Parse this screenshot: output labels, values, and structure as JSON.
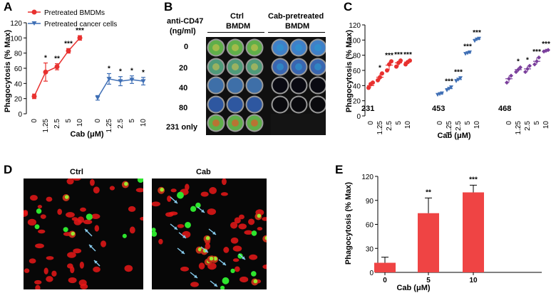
{
  "panel_letters": {
    "a": "A",
    "b": "B",
    "c": "C",
    "d": "D",
    "e": "E"
  },
  "colors": {
    "red": "#e8312f",
    "blue": "#3f6fb5",
    "purple": "#7b3f9c",
    "bar": "#ef4444",
    "green_cell": "#2ee52e",
    "red_cell": "#e81818",
    "arrow": "#88ccee"
  },
  "chart_data": [
    {
      "id": "A",
      "type": "line",
      "xlabel": "Cab (μM)",
      "ylabel": "Phagocytosis (% Max)",
      "ylim": [
        0,
        120
      ],
      "yticks": [
        "0",
        "20",
        "40",
        "60",
        "80",
        "100",
        "120"
      ],
      "xticks": [
        "0",
        "1.25",
        "2.5",
        "5",
        "10"
      ],
      "legend": [
        {
          "name": "Pretreated BMDMs",
          "color": "#e8312f",
          "marker": "circle"
        },
        {
          "name": "Pretreated cancer cells",
          "color": "#3f6fb5",
          "marker": "triangle-down"
        }
      ],
      "series": [
        {
          "name": "Pretreated BMDMs",
          "x": [
            "0",
            "1.25",
            "2.5",
            "5",
            "10"
          ],
          "values": [
            23,
            55,
            62,
            83,
            100
          ],
          "errors": [
            3,
            12,
            4,
            3,
            3
          ],
          "sig": [
            "",
            "*",
            "**",
            "***",
            "***"
          ]
        },
        {
          "name": "Pretreated cancer cells",
          "x": [
            "0",
            "1.25",
            "2.5",
            "5",
            "10"
          ],
          "values": [
            21,
            46,
            43,
            45,
            43
          ],
          "errors": [
            3,
            7,
            6,
            5,
            5
          ],
          "sig": [
            "",
            "*",
            "*",
            "*",
            "*"
          ]
        }
      ]
    },
    {
      "id": "C",
      "type": "scatter",
      "xlabel": "Cab (μM)",
      "ylabel": "Phagocytosis (% Max)",
      "ylim": [
        0,
        120
      ],
      "yticks": [
        "0",
        "20",
        "40",
        "60",
        "80",
        "100",
        "120"
      ],
      "xticks": [
        "0",
        "1.25",
        "2.5",
        "5",
        "10"
      ],
      "groups": [
        {
          "name": "231",
          "color": "#e8312f",
          "marker": "circle",
          "means": [
            40,
            51,
            67,
            70,
            71
          ],
          "points": [
            [
              37,
              42,
              44
            ],
            [
              47,
              51,
              56
            ],
            [
              60,
              68,
              72
            ],
            [
              65,
              70,
              73
            ],
            [
              68,
              71,
              73
            ]
          ],
          "sig": [
            "",
            "*",
            "***",
            "***",
            "***"
          ]
        },
        {
          "name": "453",
          "color": "#3f6fb5",
          "marker": "triangle-down",
          "means": [
            29,
            36,
            48,
            83,
            101
          ],
          "points": [
            [
              28,
              29,
              30
            ],
            [
              34,
              36,
              38
            ],
            [
              46,
              48,
              50
            ],
            [
              82,
              83,
              84
            ],
            [
              99,
              101,
              102
            ]
          ],
          "sig": [
            "",
            "***",
            "***",
            "***",
            "***"
          ]
        },
        {
          "name": "468",
          "color": "#7b3f9c",
          "marker": "diamond",
          "means": [
            49,
            61,
            62,
            72,
            86
          ],
          "points": [
            [
              44,
              49,
              53
            ],
            [
              58,
              61,
              64
            ],
            [
              58,
              62,
              66
            ],
            [
              68,
              72,
              77
            ],
            [
              85,
              86,
              87
            ]
          ],
          "sig": [
            "",
            "*",
            "*",
            "***",
            "***"
          ]
        }
      ]
    },
    {
      "id": "E",
      "type": "bar",
      "xlabel": "Cab (μM)",
      "ylabel": "Phagocytosis (% Max)",
      "ylim": [
        0,
        120
      ],
      "yticks": [
        "0",
        "30",
        "60",
        "90",
        "120"
      ],
      "categories": [
        "0",
        "5",
        "10"
      ],
      "values": [
        12,
        74,
        100
      ],
      "errors": [
        7,
        19,
        9
      ],
      "sig": [
        "",
        "**",
        "***"
      ]
    }
  ],
  "panel_b": {
    "antibody_label": "anti-CD47",
    "unit_label": "(ng/ml)",
    "col_header_1_line1": "Ctrl",
    "col_header_1_line2": "BMDM",
    "col_header_2_line1": "Cab-pretreated",
    "col_header_2_line2": "BMDM",
    "rows": [
      "0",
      "20",
      "40",
      "80",
      "231 only"
    ]
  },
  "panel_d": {
    "title_left": "Ctrl",
    "title_right": "Cab"
  }
}
